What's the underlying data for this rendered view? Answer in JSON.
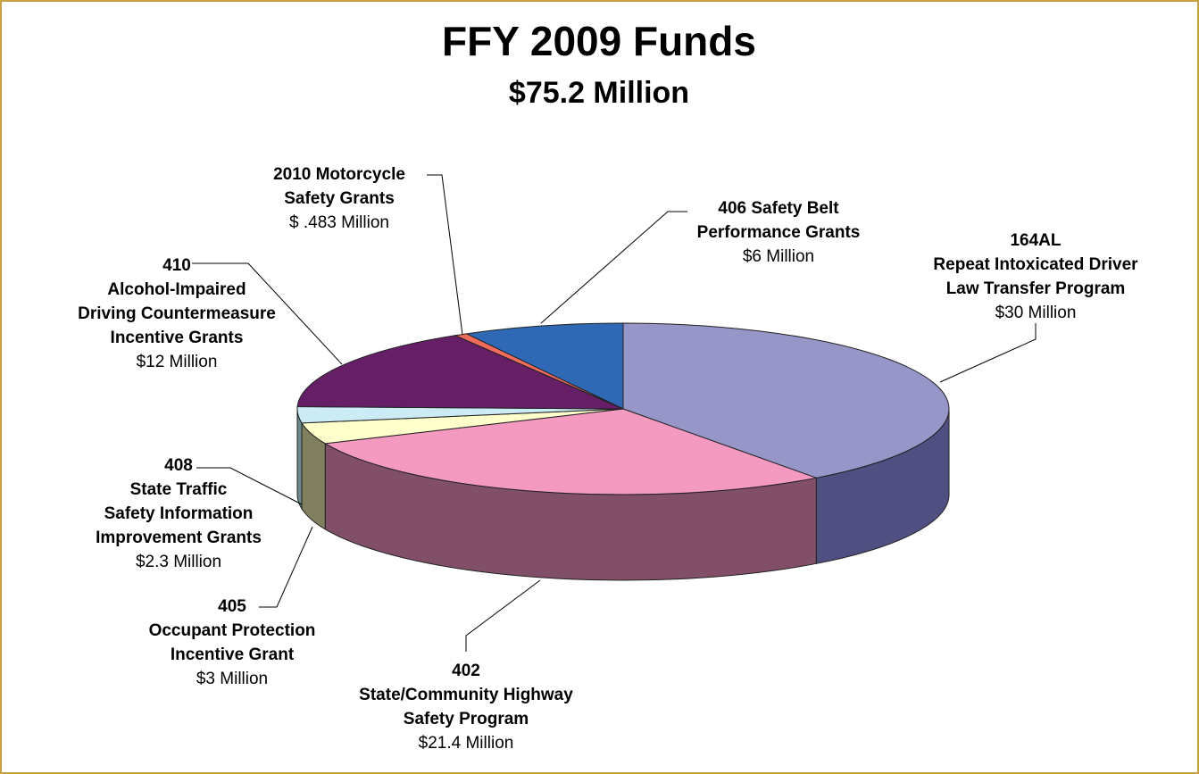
{
  "chart_data": {
    "type": "pie3d",
    "title": "FFY 2009 Funds",
    "subtitle": "$75.2 Million",
    "categories": [
      [
        "164AL",
        "Repeat Intoxicated Driver",
        "Law Transfer Program"
      ],
      [
        "402",
        "State/Community Highway",
        "Safety Program"
      ],
      [
        "405",
        "Occupant Protection",
        "Incentive Grant"
      ],
      [
        "408",
        "State Traffic",
        "Safety Information",
        "Improvement Grants"
      ],
      [
        "410",
        "Alcohol-Impaired",
        "Driving Countermeasure",
        "Incentive Grants"
      ],
      [
        "2010 Motorcycle",
        "Safety Grants"
      ],
      [
        "406 Safety Belt",
        "Performance Grants"
      ]
    ],
    "values": [
      30,
      21.4,
      3,
      2.3,
      12,
      0.483,
      6
    ],
    "value_labels": [
      "$30 Million",
      "$21.4 Million",
      "$3 Million",
      "$2.3 Million",
      "$12 Million",
      "$ .483 Million",
      "$6 Million"
    ],
    "colors": [
      "#9696c8",
      "#f49ac1",
      "#ffffcc",
      "#ccecf5",
      "#661f66",
      "#f26b5b",
      "#2f68b4"
    ],
    "side_colors": [
      "#4f4f82",
      "#814f68",
      "#808060",
      "#6c8a90",
      "#3a103a",
      "#8a3a30",
      "#1a3c6a"
    ]
  }
}
